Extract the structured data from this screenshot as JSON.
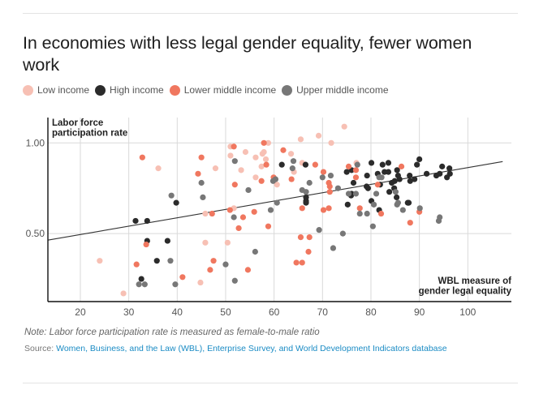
{
  "chart_data": {
    "type": "scatter",
    "title": "In economies with less legal gender equality, fewer women work",
    "xlabel": "WBL measure of gender legal equality",
    "ylabel": "Labor force participation rate",
    "xlim": [
      13.3,
      109
    ],
    "ylim": [
      0.125,
      1.14
    ],
    "xticks": [
      20,
      30,
      40,
      50,
      60,
      70,
      80,
      90,
      100
    ],
    "xtick_labels": [
      "20",
      "30",
      "40",
      "50",
      "60",
      "70",
      "80",
      "90",
      "100"
    ],
    "yticks": [
      0.5,
      1.0
    ],
    "ytick_labels": [
      "0.50",
      "1.00"
    ],
    "grid": true,
    "legend_position": "top-left",
    "trendline": {
      "x": [
        13.3,
        107.2
      ],
      "y": [
        0.464,
        0.897
      ]
    },
    "series": [
      {
        "name": "Low income",
        "color": "#f7c0b4",
        "points": [
          [
            24.0,
            0.35
          ],
          [
            28.9,
            0.17
          ],
          [
            36.1,
            0.86
          ],
          [
            44.8,
            0.23
          ],
          [
            45.8,
            0.45
          ],
          [
            45.8,
            0.61
          ],
          [
            47.9,
            0.86
          ],
          [
            50.4,
            0.45
          ],
          [
            51.0,
            0.98
          ],
          [
            51.0,
            0.93
          ],
          [
            54.1,
            0.95
          ],
          [
            53.2,
            0.85
          ],
          [
            56.2,
            0.92
          ],
          [
            57.4,
            0.87
          ],
          [
            57.6,
            0.94
          ],
          [
            57.9,
            0.95
          ],
          [
            58.3,
            0.91
          ],
          [
            58.8,
            1.0
          ],
          [
            56.2,
            0.81
          ],
          [
            60.6,
            0.77
          ],
          [
            63.5,
            0.94
          ],
          [
            64.1,
            0.84
          ],
          [
            65.5,
            1.02
          ],
          [
            65.8,
            0.89
          ],
          [
            69.2,
            1.04
          ],
          [
            71.8,
            1.0
          ],
          [
            74.5,
            1.09
          ],
          [
            77.0,
            0.89
          ],
          [
            51.7,
            0.64
          ]
        ]
      },
      {
        "name": "High income",
        "color": "#2b2b2b",
        "points": [
          [
            31.4,
            0.57
          ],
          [
            33.8,
            0.57
          ],
          [
            33.8,
            0.46
          ],
          [
            38.0,
            0.46
          ],
          [
            35.8,
            0.35
          ],
          [
            32.6,
            0.25
          ],
          [
            39.8,
            0.67
          ],
          [
            61.6,
            0.88
          ],
          [
            66.5,
            0.88
          ],
          [
            66.6,
            0.7
          ],
          [
            66.6,
            0.68
          ],
          [
            66.6,
            0.67
          ],
          [
            75.0,
            0.84
          ],
          [
            76.0,
            0.85
          ],
          [
            76.4,
            0.78
          ],
          [
            75.9,
            0.71
          ],
          [
            76.0,
            0.72
          ],
          [
            75.2,
            0.66
          ],
          [
            79.1,
            0.76
          ],
          [
            79.4,
            0.75
          ],
          [
            80.1,
            0.89
          ],
          [
            80.1,
            0.68
          ],
          [
            79.2,
            0.82
          ],
          [
            81.4,
            0.83
          ],
          [
            81.7,
            0.63
          ],
          [
            81.9,
            0.77
          ],
          [
            82.4,
            0.88
          ],
          [
            82.8,
            0.84
          ],
          [
            83.6,
            0.89
          ],
          [
            83.6,
            0.84
          ],
          [
            84.3,
            0.78
          ],
          [
            84.8,
            0.75
          ],
          [
            84.9,
            0.79
          ],
          [
            85.3,
            0.7
          ],
          [
            85.4,
            0.85
          ],
          [
            85.6,
            0.82
          ],
          [
            85.9,
            0.8
          ],
          [
            87.6,
            0.67
          ],
          [
            87.8,
            0.67
          ],
          [
            88.0,
            0.82
          ],
          [
            88.1,
            0.79
          ],
          [
            89.0,
            0.8
          ],
          [
            89.5,
            0.88
          ],
          [
            90.0,
            0.91
          ],
          [
            91.5,
            0.83
          ],
          [
            93.5,
            0.82
          ],
          [
            94.2,
            0.83
          ],
          [
            94.7,
            0.87
          ],
          [
            95.7,
            0.81
          ],
          [
            96.2,
            0.86
          ],
          [
            96.3,
            0.83
          ],
          [
            83.8,
            0.73
          ]
        ]
      },
      {
        "name": "Lower middle income",
        "color": "#f0775f",
        "points": [
          [
            31.6,
            0.33
          ],
          [
            32.8,
            0.92
          ],
          [
            33.6,
            0.44
          ],
          [
            41.1,
            0.26
          ],
          [
            44.3,
            0.83
          ],
          [
            45.0,
            0.92
          ],
          [
            46.8,
            0.3
          ],
          [
            47.2,
            0.61
          ],
          [
            47.5,
            0.35
          ],
          [
            50.9,
            0.63
          ],
          [
            51.7,
            0.98
          ],
          [
            51.9,
            0.77
          ],
          [
            52.7,
            0.53
          ],
          [
            53.6,
            0.59
          ],
          [
            54.6,
            0.3
          ],
          [
            55.9,
            0.62
          ],
          [
            57.4,
            0.79
          ],
          [
            57.9,
            1.0
          ],
          [
            58.4,
            0.88
          ],
          [
            58.8,
            0.54
          ],
          [
            59.9,
            0.81
          ],
          [
            61.9,
            0.96
          ],
          [
            63.6,
            0.8
          ],
          [
            64.6,
            0.34
          ],
          [
            65.8,
            0.34
          ],
          [
            65.5,
            0.48
          ],
          [
            65.8,
            0.64
          ],
          [
            67.1,
            0.4
          ],
          [
            67.3,
            0.48
          ],
          [
            68.5,
            0.88
          ],
          [
            70.2,
            0.84
          ],
          [
            70.2,
            0.63
          ],
          [
            71.3,
            0.78
          ],
          [
            71.3,
            0.64
          ],
          [
            71.5,
            0.76
          ],
          [
            71.5,
            0.73
          ],
          [
            75.4,
            0.87
          ],
          [
            76.9,
            0.85
          ],
          [
            76.9,
            0.81
          ],
          [
            77.7,
            0.64
          ],
          [
            81.4,
            0.77
          ],
          [
            82.1,
            0.61
          ],
          [
            86.3,
            0.87
          ],
          [
            88.1,
            0.56
          ],
          [
            90.0,
            0.62
          ]
        ]
      },
      {
        "name": "Upper middle income",
        "color": "#777777",
        "points": [
          [
            32.1,
            0.22
          ],
          [
            33.3,
            0.22
          ],
          [
            38.6,
            0.35
          ],
          [
            38.8,
            0.71
          ],
          [
            39.6,
            0.22
          ],
          [
            45.0,
            0.78
          ],
          [
            45.3,
            0.7
          ],
          [
            50.0,
            0.33
          ],
          [
            51.7,
            0.59
          ],
          [
            51.9,
            0.9
          ],
          [
            51.9,
            0.24
          ],
          [
            54.7,
            0.74
          ],
          [
            56.1,
            0.4
          ],
          [
            59.3,
            0.63
          ],
          [
            59.8,
            0.79
          ],
          [
            60.3,
            0.8
          ],
          [
            60.6,
            0.67
          ],
          [
            63.8,
            0.86
          ],
          [
            64.0,
            0.9
          ],
          [
            65.8,
            0.74
          ],
          [
            66.6,
            0.73
          ],
          [
            67.3,
            0.78
          ],
          [
            69.3,
            0.52
          ],
          [
            70.0,
            0.81
          ],
          [
            71.7,
            0.82
          ],
          [
            72.2,
            0.42
          ],
          [
            73.2,
            0.75
          ],
          [
            74.2,
            0.5
          ],
          [
            75.4,
            0.72
          ],
          [
            76.9,
            0.72
          ],
          [
            77.2,
            0.88
          ],
          [
            77.7,
            0.61
          ],
          [
            79.2,
            0.61
          ],
          [
            80.4,
            0.54
          ],
          [
            80.6,
            0.66
          ],
          [
            81.1,
            0.72
          ],
          [
            81.7,
            0.81
          ],
          [
            82.2,
            0.81
          ],
          [
            85.1,
            0.73
          ],
          [
            85.4,
            0.66
          ],
          [
            85.6,
            0.67
          ],
          [
            86.6,
            0.63
          ],
          [
            90.1,
            0.64
          ],
          [
            94.0,
            0.57
          ],
          [
            94.2,
            0.59
          ]
        ]
      }
    ],
    "axis_title_y_lines": [
      "Labor force",
      "participation rate"
    ],
    "axis_title_x_lines": [
      "WBL measure of",
      "gender legal equality"
    ]
  },
  "legend": [
    {
      "label": "Low income",
      "color": "#f7c0b4"
    },
    {
      "label": "High income",
      "color": "#2b2b2b"
    },
    {
      "label": "Lower middle income",
      "color": "#f0775f"
    },
    {
      "label": "Upper middle income",
      "color": "#777777"
    }
  ],
  "footer": {
    "note": "Note: Labor force participation rate is measured as female-to-male ratio",
    "source_label": "Source: ",
    "source_link": "Women, Business, and the Law (WBL), Enterprise Survey, and World Development Indicators database"
  }
}
